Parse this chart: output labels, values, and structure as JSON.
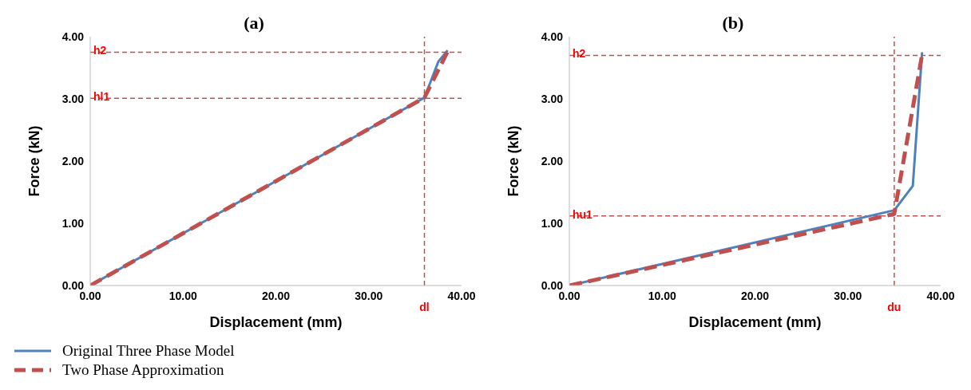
{
  "chart_data": [
    {
      "type": "line",
      "title": "(a)",
      "xlabel": "Displacement (mm)",
      "ylabel": "Force (kN)",
      "xlim": [
        0,
        40
      ],
      "ylim": [
        0,
        4
      ],
      "xticks": [
        {
          "value": 0,
          "label": "0.00"
        },
        {
          "value": 10,
          "label": "10.00"
        },
        {
          "value": 20,
          "label": "20.00"
        },
        {
          "value": 30,
          "label": "30.00"
        },
        {
          "value": 40,
          "label": "40.00"
        }
      ],
      "yticks": [
        {
          "value": 0,
          "label": "0.00"
        },
        {
          "value": 1,
          "label": "1.00"
        },
        {
          "value": 2,
          "label": "2.00"
        },
        {
          "value": 3,
          "label": "3.00"
        },
        {
          "value": 4,
          "label": "4.00"
        }
      ],
      "grid": false,
      "legend": "bottom",
      "marker": "none",
      "series": [
        {
          "name": "Original Three Phase Model",
          "color": "#4f81bd",
          "line_style": "solid",
          "x": [
            0,
            36,
            37.5,
            38.5
          ],
          "values": [
            0,
            3.02,
            3.6,
            3.78
          ]
        },
        {
          "name": "Two Phase Approximation",
          "color": "#c0504d",
          "line_style": "dashed",
          "x": [
            0,
            36,
            38.5
          ],
          "values": [
            0,
            3.02,
            3.76
          ]
        }
      ],
      "ref_lines": [
        {
          "axis": "y",
          "value": 3.75,
          "label": "h2",
          "color": "#c0504d",
          "line_style": "dashed"
        },
        {
          "axis": "y",
          "value": 3.01,
          "label": "hl1",
          "color": "#c0504d",
          "line_style": "dashed"
        },
        {
          "axis": "x",
          "value": 36,
          "label": "dl",
          "color": "#c0504d",
          "line_style": "dashed"
        }
      ]
    },
    {
      "type": "line",
      "title": "(b)",
      "xlabel": "Displacement (mm)",
      "ylabel": "Force (kN)",
      "xlim": [
        0,
        40
      ],
      "ylim": [
        0,
        4
      ],
      "xticks": [
        {
          "value": 0,
          "label": "0.00"
        },
        {
          "value": 10,
          "label": "10.00"
        },
        {
          "value": 20,
          "label": "20.00"
        },
        {
          "value": 30,
          "label": "30.00"
        },
        {
          "value": 40,
          "label": "40.00"
        }
      ],
      "yticks": [
        {
          "value": 0,
          "label": "0.00"
        },
        {
          "value": 1,
          "label": "1.00"
        },
        {
          "value": 2,
          "label": "2.00"
        },
        {
          "value": 3,
          "label": "3.00"
        },
        {
          "value": 4,
          "label": "4.00"
        }
      ],
      "grid": false,
      "marker": "none",
      "series": [
        {
          "color": "#4f81bd",
          "line_style": "solid",
          "x": [
            0,
            35,
            37,
            38
          ],
          "values": [
            0,
            1.21,
            1.6,
            3.75
          ]
        },
        {
          "color": "#c0504d",
          "line_style": "dashed",
          "x": [
            0,
            35,
            38
          ],
          "values": [
            0,
            1.15,
            3.71
          ]
        }
      ],
      "ref_lines": [
        {
          "axis": "y",
          "value": 3.7,
          "label": "h2",
          "color": "#c0504d",
          "line_style": "dashed"
        },
        {
          "axis": "y",
          "value": 1.12,
          "label": "hu1",
          "color": "#c0504d",
          "line_style": "dashed"
        },
        {
          "axis": "x",
          "value": 35,
          "label": "du",
          "color": "#c0504d",
          "line_style": "dashed"
        }
      ]
    }
  ]
}
